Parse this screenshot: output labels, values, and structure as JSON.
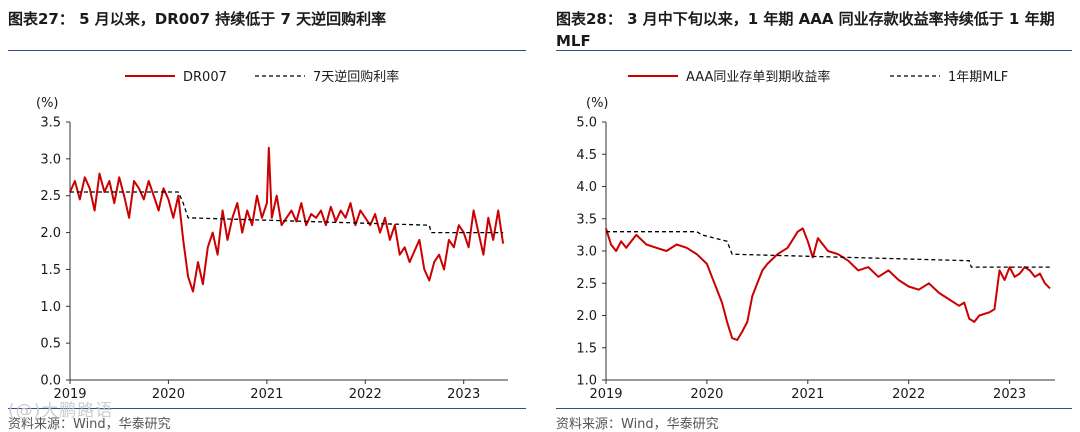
{
  "colors": {
    "series_main": "#cc0000",
    "series_ref": "#000000",
    "rule": "#2f4f8f"
  },
  "chart_data": [
    {
      "type": "line",
      "title": "图表27： 5 月以来，DR007 持续低于 7 天逆回购利率",
      "ylabel": "(%)",
      "ylim": [
        0,
        3.5
      ],
      "y_ticks": [
        "0.0",
        "0.5",
        "1.0",
        "1.5",
        "2.0",
        "2.5",
        "3.0",
        "3.5"
      ],
      "xlim": [
        2019.0,
        2023.45
      ],
      "x_ticks": [
        "2019",
        "2020",
        "2021",
        "2022",
        "2023"
      ],
      "legend": [
        "DR007",
        "7天逆回购利率"
      ],
      "legend_position": "top",
      "source": "资料来源：Wind，华泰研究",
      "series": [
        {
          "name": "DR007",
          "style": "solid",
          "x": [
            2019.0,
            2019.05,
            2019.1,
            2019.15,
            2019.2,
            2019.25,
            2019.3,
            2019.35,
            2019.4,
            2019.45,
            2019.5,
            2019.55,
            2019.6,
            2019.65,
            2019.7,
            2019.75,
            2019.8,
            2019.85,
            2019.9,
            2019.95,
            2020.0,
            2020.05,
            2020.1,
            2020.15,
            2020.2,
            2020.25,
            2020.3,
            2020.35,
            2020.4,
            2020.45,
            2020.5,
            2020.55,
            2020.6,
            2020.65,
            2020.7,
            2020.75,
            2020.8,
            2020.85,
            2020.9,
            2020.95,
            2021.0,
            2021.02,
            2021.05,
            2021.1,
            2021.15,
            2021.2,
            2021.25,
            2021.3,
            2021.35,
            2021.4,
            2021.45,
            2021.5,
            2021.55,
            2021.6,
            2021.65,
            2021.7,
            2021.75,
            2021.8,
            2021.85,
            2021.9,
            2021.95,
            2022.0,
            2022.05,
            2022.1,
            2022.15,
            2022.2,
            2022.25,
            2022.3,
            2022.35,
            2022.4,
            2022.45,
            2022.5,
            2022.55,
            2022.6,
            2022.65,
            2022.7,
            2022.75,
            2022.8,
            2022.85,
            2022.9,
            2022.95,
            2023.0,
            2023.05,
            2023.1,
            2023.15,
            2023.2,
            2023.25,
            2023.3,
            2023.35,
            2023.4
          ],
          "y": [
            2.55,
            2.7,
            2.45,
            2.75,
            2.6,
            2.3,
            2.8,
            2.55,
            2.7,
            2.4,
            2.75,
            2.5,
            2.2,
            2.7,
            2.6,
            2.45,
            2.7,
            2.5,
            2.3,
            2.6,
            2.45,
            2.2,
            2.5,
            1.9,
            1.4,
            1.2,
            1.6,
            1.3,
            1.8,
            2.0,
            1.7,
            2.3,
            1.9,
            2.2,
            2.4,
            2.0,
            2.3,
            2.1,
            2.5,
            2.2,
            2.4,
            3.15,
            2.2,
            2.5,
            2.1,
            2.2,
            2.3,
            2.15,
            2.4,
            2.1,
            2.25,
            2.2,
            2.3,
            2.1,
            2.35,
            2.15,
            2.3,
            2.2,
            2.4,
            2.1,
            2.3,
            2.2,
            2.1,
            2.25,
            2.0,
            2.2,
            1.9,
            2.1,
            1.7,
            1.8,
            1.6,
            1.75,
            1.9,
            1.5,
            1.35,
            1.6,
            1.7,
            1.5,
            1.9,
            1.8,
            2.1,
            2.0,
            1.8,
            2.3,
            2.0,
            1.7,
            2.2,
            1.9,
            2.3,
            1.85
          ]
        },
        {
          "name": "7天逆回购利率",
          "style": "dashed",
          "x": [
            2019.0,
            2020.1,
            2020.15,
            2020.2,
            2022.65,
            2022.67,
            2023.4
          ],
          "y": [
            2.55,
            2.55,
            2.4,
            2.2,
            2.1,
            2.0,
            2.0
          ]
        }
      ]
    },
    {
      "type": "line",
      "title": "图表28： 3 月中下旬以来，1 年期 AAA 同业存款收益率持续低于 1 年期 MLF",
      "ylabel": "(%)",
      "ylim": [
        1.0,
        5.0
      ],
      "y_ticks": [
        "1.0",
        "1.5",
        "2.0",
        "2.5",
        "3.0",
        "3.5",
        "4.0",
        "4.5",
        "5.0"
      ],
      "xlim": [
        2019.0,
        2023.45
      ],
      "x_ticks": [
        "2019",
        "2020",
        "2021",
        "2022",
        "2023"
      ],
      "legend": [
        "AAA同业存单到期收益率",
        "1年期MLF"
      ],
      "legend_position": "top",
      "source": "资料来源：Wind，华泰研究",
      "series": [
        {
          "name": "AAA同业存单到期收益率",
          "style": "solid",
          "x": [
            2019.0,
            2019.05,
            2019.1,
            2019.15,
            2019.2,
            2019.3,
            2019.4,
            2019.5,
            2019.6,
            2019.7,
            2019.8,
            2019.9,
            2020.0,
            2020.05,
            2020.1,
            2020.15,
            2020.2,
            2020.25,
            2020.3,
            2020.35,
            2020.4,
            2020.45,
            2020.5,
            2020.55,
            2020.6,
            2020.7,
            2020.8,
            2020.9,
            2020.95,
            2021.0,
            2021.05,
            2021.1,
            2021.15,
            2021.2,
            2021.3,
            2021.4,
            2021.5,
            2021.6,
            2021.7,
            2021.8,
            2021.9,
            2022.0,
            2022.1,
            2022.2,
            2022.3,
            2022.4,
            2022.5,
            2022.55,
            2022.6,
            2022.65,
            2022.7,
            2022.8,
            2022.85,
            2022.9,
            2022.95,
            2023.0,
            2023.05,
            2023.1,
            2023.15,
            2023.2,
            2023.25,
            2023.3,
            2023.35,
            2023.4
          ],
          "y": [
            3.35,
            3.1,
            3.0,
            3.15,
            3.05,
            3.25,
            3.1,
            3.05,
            3.0,
            3.1,
            3.05,
            2.95,
            2.8,
            2.6,
            2.4,
            2.2,
            1.9,
            1.65,
            1.62,
            1.75,
            1.9,
            2.3,
            2.5,
            2.7,
            2.8,
            2.95,
            3.05,
            3.3,
            3.35,
            3.15,
            2.9,
            3.2,
            3.1,
            3.0,
            2.95,
            2.85,
            2.7,
            2.75,
            2.6,
            2.7,
            2.55,
            2.45,
            2.4,
            2.5,
            2.35,
            2.25,
            2.15,
            2.2,
            1.95,
            1.9,
            2.0,
            2.05,
            2.1,
            2.7,
            2.55,
            2.75,
            2.6,
            2.65,
            2.75,
            2.7,
            2.6,
            2.65,
            2.5,
            2.42
          ]
        },
        {
          "name": "1年期MLF",
          "style": "dashed",
          "x": [
            2019.0,
            2019.9,
            2019.95,
            2020.2,
            2020.25,
            2022.6,
            2022.62,
            2023.4
          ],
          "y": [
            3.3,
            3.3,
            3.25,
            3.15,
            2.95,
            2.85,
            2.75,
            2.75
          ]
        }
      ]
    }
  ],
  "watermark": "(@)大鹏路语"
}
